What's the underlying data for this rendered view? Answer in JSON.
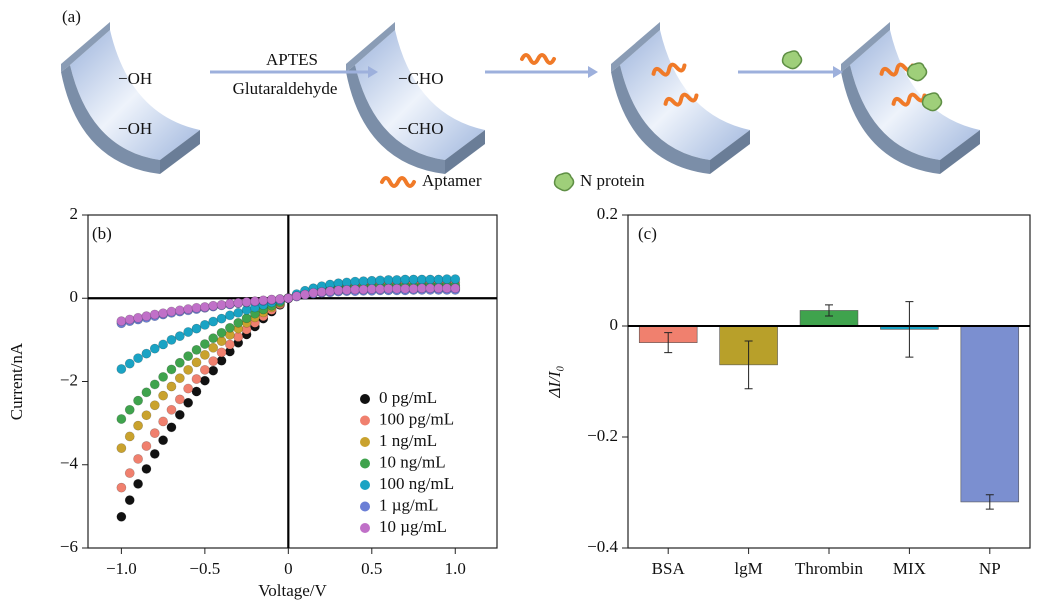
{
  "diagram": {
    "panel_label": "(a)",
    "labels": [
      "−OH",
      "−OH",
      "APTES",
      "Glutaraldehyde",
      "−CHO",
      "−CHO"
    ],
    "legend": [
      "Aptamer",
      "N protein"
    ]
  },
  "chart_data": [
    {
      "type": "scatter",
      "panel_label": "(b)",
      "x_label": "Voltage/V",
      "y_label": "Current/nA",
      "xlim": [
        -1.2,
        1.25
      ],
      "ylim": [
        -6,
        2
      ],
      "xticks": [
        {
          "value": -1,
          "label": "−1.0"
        },
        {
          "value": -0.5,
          "label": "−0.5"
        },
        0,
        0.5,
        {
          "value": 1,
          "label": "1.0"
        }
      ],
      "yticks": [
        {
          "value": -6,
          "label": "−6"
        },
        {
          "value": -4,
          "label": "−4"
        },
        {
          "value": -2,
          "label": "−2"
        },
        0,
        2
      ],
      "zero_lines": true,
      "legend_position": "lower right",
      "x": [
        -1,
        -0.95,
        -0.9,
        -0.85,
        -0.8,
        -0.75,
        -0.7,
        -0.65,
        -0.6,
        -0.55,
        -0.5,
        -0.45,
        -0.4,
        -0.35,
        -0.3,
        -0.25,
        -0.2,
        -0.15,
        -0.1,
        -0.05,
        0,
        0.05,
        0.1,
        0.15,
        0.2,
        0.25,
        0.3,
        0.35,
        0.4,
        0.45,
        0.5,
        0.55,
        0.6,
        0.65,
        0.7,
        0.75,
        0.8,
        0.85,
        0.9,
        0.95,
        1
      ],
      "series": [
        {
          "name": "0 pg/mL",
          "color": "#111111",
          "values": [
            -5.25,
            -4.85,
            -4.46,
            -4.1,
            -3.74,
            -3.41,
            -3.1,
            -2.8,
            -2.51,
            -2.24,
            -1.98,
            -1.74,
            -1.5,
            -1.28,
            -1.07,
            -0.87,
            -0.68,
            -0.49,
            -0.32,
            -0.16,
            0,
            0.05,
            0.09,
            0.12,
            0.14,
            0.16,
            0.17,
            0.18,
            0.19,
            0.2,
            0.2,
            0.21,
            0.21,
            0.21,
            0.21,
            0.21,
            0.22,
            0.22,
            0.22,
            0.22,
            0.22
          ]
        },
        {
          "name": "100 pg/mL",
          "color": "#f0806e",
          "values": [
            -4.55,
            -4.2,
            -3.86,
            -3.55,
            -3.24,
            -2.96,
            -2.68,
            -2.43,
            -2.17,
            -1.94,
            -1.72,
            -1.51,
            -1.3,
            -1.11,
            -0.93,
            -0.75,
            -0.59,
            -0.43,
            -0.28,
            -0.14,
            0,
            0.08,
            0.15,
            0.2,
            0.24,
            0.27,
            0.3,
            0.31,
            0.33,
            0.34,
            0.35,
            0.36,
            0.36,
            0.37,
            0.37,
            0.37,
            0.37,
            0.37,
            0.38,
            0.38,
            0.38
          ]
        },
        {
          "name": "1 ng/mL",
          "color": "#c9a22e",
          "values": [
            -3.6,
            -3.32,
            -3.06,
            -2.81,
            -2.57,
            -2.34,
            -2.12,
            -1.92,
            -1.72,
            -1.54,
            -1.36,
            -1.19,
            -1.03,
            -0.88,
            -0.73,
            -0.59,
            -0.46,
            -0.34,
            -0.22,
            -0.11,
            0,
            0.06,
            0.1,
            0.13,
            0.16,
            0.18,
            0.19,
            0.21,
            0.22,
            0.22,
            0.23,
            0.23,
            0.24,
            0.24,
            0.24,
            0.24,
            0.25,
            0.25,
            0.25,
            0.25,
            0.25
          ]
        },
        {
          "name": "10 ng/mL",
          "color": "#3fa34d",
          "values": [
            -2.9,
            -2.68,
            -2.46,
            -2.26,
            -2.07,
            -1.89,
            -1.71,
            -1.55,
            -1.39,
            -1.24,
            -1.1,
            -0.96,
            -0.83,
            -0.71,
            -0.59,
            -0.48,
            -0.37,
            -0.27,
            -0.18,
            -0.09,
            0,
            0.07,
            0.12,
            0.16,
            0.19,
            0.21,
            0.23,
            0.25,
            0.26,
            0.27,
            0.28,
            0.28,
            0.29,
            0.29,
            0.29,
            0.29,
            0.29,
            0.3,
            0.3,
            0.3,
            0.3
          ]
        },
        {
          "name": "100 ng/mL",
          "color": "#1aa3c4",
          "values": [
            -1.7,
            -1.57,
            -1.44,
            -1.33,
            -1.21,
            -1.11,
            -1,
            -0.91,
            -0.81,
            -0.73,
            -0.64,
            -0.56,
            -0.49,
            -0.41,
            -0.35,
            -0.28,
            -0.22,
            -0.16,
            -0.1,
            -0.05,
            0,
            0.1,
            0.18,
            0.24,
            0.29,
            0.33,
            0.36,
            0.38,
            0.4,
            0.41,
            0.42,
            0.43,
            0.44,
            0.44,
            0.45,
            0.45,
            0.45,
            0.45,
            0.45,
            0.46,
            0.46
          ]
        },
        {
          "name": "1 µg/mL",
          "color": "#6b7fd6",
          "values": [
            -0.6,
            -0.55,
            -0.51,
            -0.47,
            -0.43,
            -0.39,
            -0.35,
            -0.32,
            -0.29,
            -0.26,
            -0.23,
            -0.2,
            -0.17,
            -0.15,
            -0.12,
            -0.1,
            -0.08,
            -0.06,
            -0.04,
            -0.02,
            0,
            0.04,
            0.08,
            0.11,
            0.13,
            0.14,
            0.16,
            0.17,
            0.17,
            0.18,
            0.18,
            0.19,
            0.19,
            0.19,
            0.19,
            0.2,
            0.2,
            0.2,
            0.2,
            0.2,
            0.2
          ]
        },
        {
          "name": "10 µg/mL",
          "color": "#c070c8",
          "values": [
            -0.55,
            -0.51,
            -0.47,
            -0.43,
            -0.39,
            -0.36,
            -0.32,
            -0.29,
            -0.26,
            -0.23,
            -0.21,
            -0.18,
            -0.16,
            -0.13,
            -0.11,
            -0.09,
            -0.07,
            -0.05,
            -0.03,
            -0.02,
            0,
            0.05,
            0.09,
            0.13,
            0.15,
            0.17,
            0.19,
            0.2,
            0.21,
            0.21,
            0.22,
            0.22,
            0.23,
            0.23,
            0.23,
            0.23,
            0.24,
            0.24,
            0.24,
            0.24,
            0.24
          ]
        }
      ]
    },
    {
      "type": "bar",
      "panel_label": "(c)",
      "y_label": "ΔI/I₀",
      "categories": [
        "BSA",
        "lgM",
        "Thrombin",
        "MIX",
        "NP"
      ],
      "values": [
        -0.03,
        -0.07,
        0.028,
        -0.006,
        -0.317
      ],
      "errors": [
        0.018,
        0.043,
        0.01,
        0.05,
        0.013
      ],
      "colors": [
        "#f0806e",
        "#b8a02a",
        "#3fa34d",
        "#1aa3c4",
        "#7b8fd0"
      ],
      "ylim": [
        -0.4,
        0.2
      ],
      "yticks": [
        {
          "value": -0.4,
          "label": "−0.4"
        },
        {
          "value": -0.2,
          "label": "−0.2"
        },
        0,
        0.2
      ],
      "zero_lines": true
    }
  ]
}
